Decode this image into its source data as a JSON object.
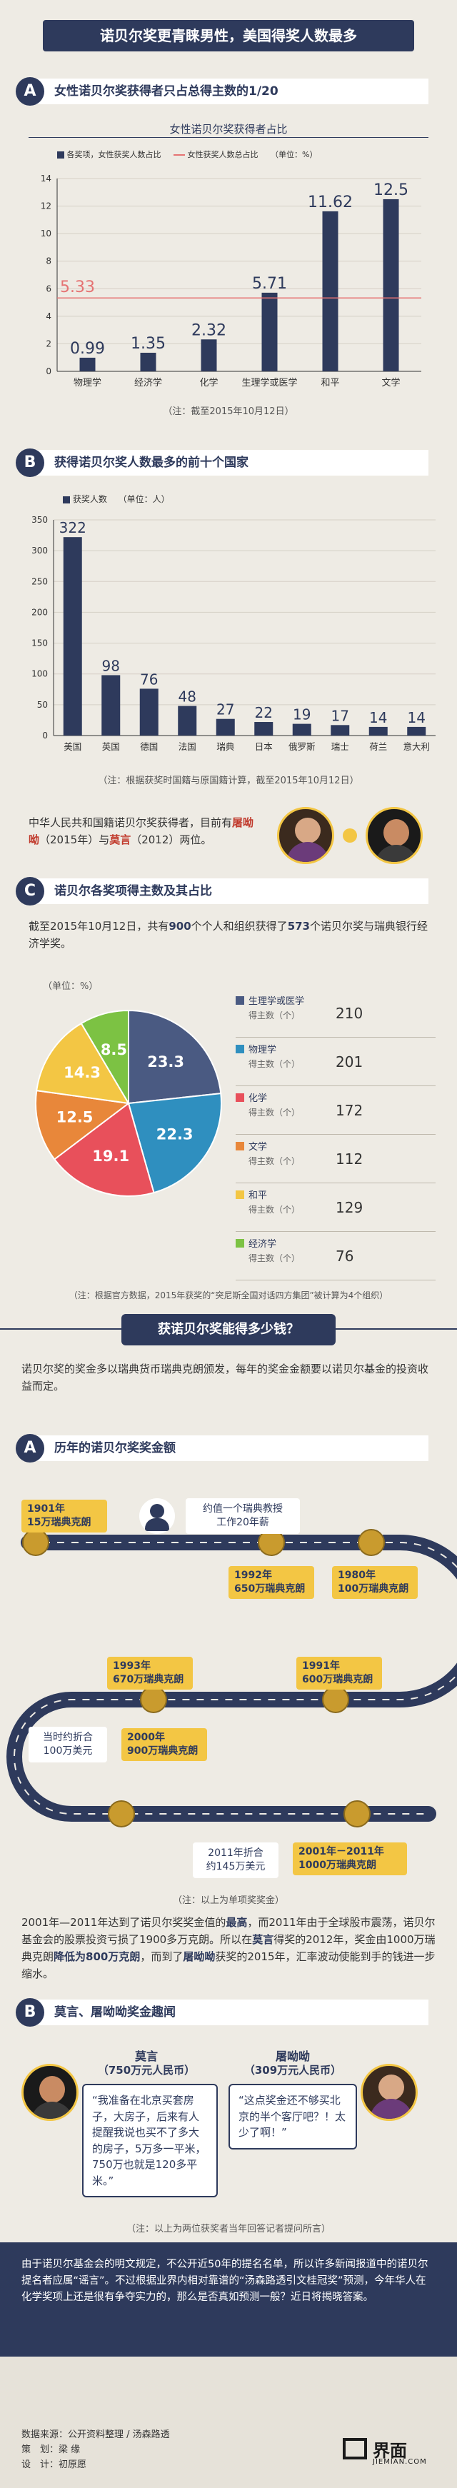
{
  "header": {
    "title": "诺贝尔奖更青睐男性，美国得奖人数最多"
  },
  "sectionA": {
    "badge": "A",
    "title": "女性诺贝尔奖获得者只占总得主数的1/20",
    "chart_data": {
      "type": "bar",
      "title": "女性诺贝尔奖获得者占比",
      "unit": "（单位：%）",
      "legend": [
        "各奖项，女性获奖人数占比",
        "女性获奖人数总占比"
      ],
      "categories": [
        "物理学",
        "经济学",
        "化学",
        "生理学或医学",
        "和平",
        "文学"
      ],
      "values": [
        0.99,
        1.35,
        2.32,
        5.71,
        11.62,
        12.5
      ],
      "overall": 5.33,
      "ylim": [
        0,
        14
      ],
      "yticks": [
        0,
        2,
        4,
        6,
        8,
        10,
        12,
        14
      ],
      "colors": {
        "bar": "#2e3a5c",
        "line": "#e57373"
      }
    },
    "value_labels": [
      "0.99",
      "1.35",
      "2.32",
      "5.71",
      "11.62",
      "12.5"
    ],
    "overall_label": "5.33",
    "note": "（注：截至2015年10月12日）"
  },
  "sectionB": {
    "badge": "B",
    "title": "获得诺贝尔奖人数最多的前十个国家",
    "chart_data": {
      "type": "bar",
      "legend": "获奖人数",
      "unit": "（单位：人）",
      "categories": [
        "美国",
        "英国",
        "德国",
        "法国",
        "瑞典",
        "日本",
        "俄罗斯",
        "瑞士",
        "荷兰",
        "意大利"
      ],
      "values": [
        322,
        98,
        76,
        48,
        27,
        22,
        19,
        17,
        14,
        14
      ],
      "ylim": [
        0,
        350
      ],
      "yticks": [
        0,
        50,
        100,
        150,
        200,
        250,
        300,
        350
      ],
      "colors": {
        "bar": "#2e3a5c"
      }
    },
    "value_labels": [
      "322",
      "98",
      "76",
      "48",
      "27",
      "22",
      "19",
      "17",
      "14",
      "14"
    ],
    "note": "（注：根据获奖时国籍与原国籍计算，截至2015年10月12日）",
    "china_text_1": "中华人民共和国籍诺贝尔奖获得者，目前有",
    "china_name_1": "屠呦呦",
    "china_text_2": "（2015年）与",
    "china_name_2": "莫言",
    "china_text_3": "（2012）两位。"
  },
  "sectionC": {
    "badge": "C",
    "title": "诺贝尔各奖项得主数及其占比",
    "intro_1": "截至2015年10月12日，共有",
    "intro_num_1": "900",
    "intro_2": "个个人和组织获得了",
    "intro_num_2": "573",
    "intro_3": "个诺贝尔奖与瑞典银行经济学奖。",
    "unit": "（单位：%）",
    "chart_data": {
      "type": "pie",
      "slices": [
        {
          "name": "生理学或医学",
          "value": 23.3,
          "count": 210,
          "color": "#4a5a82"
        },
        {
          "name": "物理学",
          "value": 22.3,
          "count": 201,
          "color": "#2f8fbf"
        },
        {
          "name": "化学",
          "value": 19.1,
          "count": 172,
          "color": "#e8505b"
        },
        {
          "name": "文学",
          "value": 12.5,
          "count": 112,
          "color": "#e8873a"
        },
        {
          "name": "和平",
          "value": 14.3,
          "count": 129,
          "color": "#f3c644"
        },
        {
          "name": "经济学",
          "value": 8.5,
          "count": 76,
          "color": "#7cc243"
        }
      ]
    },
    "slice_labels": [
      "23.3",
      "22.3",
      "19.1",
      "12.5",
      "14.3",
      "8.5"
    ],
    "legend_sub": "得主数（个）",
    "legend_counts": [
      "210",
      "201",
      "172",
      "112",
      "129",
      "76"
    ],
    "note": "（注：根据官方数据，2015年获奖的“突尼斯全国对话四方集团”被计算为4个组织）"
  },
  "money": {
    "heading": "获诺贝尔奖能得多少钱？",
    "intro": "诺贝尔奖的奖金多以瑞典货币瑞典克朗颁发，每年的奖金金额要以诺贝尔基金的投资收益而定。",
    "sub_badge": "A",
    "sub_title": "历年的诺贝尔奖奖金额",
    "t1901": "1901年\n15万瑞典克朗",
    "t1901_note": "约值一个瑞典教授\n工作20年薪",
    "t1992": "1992年\n650万瑞典克朗",
    "t1980": "1980年\n100万瑞典克朗",
    "t1993": "1993年\n670万瑞典克朗",
    "t1991": "1991年\n600万瑞典克朗",
    "t2000": "2000年\n900万瑞典克朗",
    "t2000_note": "当时约折合\n100万美元",
    "t2001": "2001年－2011年\n1000万瑞典克朗",
    "t2011_note": "2011年折合\n约145万美元",
    "unit_note": "（注：以上为单项奖奖金）",
    "para_1": "2001年—2011年达到了诺贝尔奖奖金值的",
    "para_hl_1": "最高",
    "para_2": "，而2011年由于全球股市震荡，诺贝尔基金会的股票投资亏损了1900多万克朗。所以在",
    "para_hl_2": "莫言",
    "para_3": "得奖的2012年，奖金由1000万瑞典克朗",
    "para_hl_3": "降低为800万克朗",
    "para_4": "，而到了",
    "para_hl_4": "屠呦呦",
    "para_5": "获奖的2015年，汇率波动使能到手的钱进一步缩水。"
  },
  "quotes": {
    "badge": "B",
    "title": "莫言、屠呦呦奖金趣闻",
    "moyan_name": "莫言",
    "moyan_amount": "（750万元人民币）",
    "moyan_quote": "“我准备在北京买套房子，大房子，后来有人提醒我说也买不了多大的房子，5万多一平米，750万也就是120多平米。”",
    "tu_name": "屠呦呦",
    "tu_amount": "（309万元人民币）",
    "tu_quote": "“这点奖金还不够买北京的半个客厅吧？！太少了啊！”",
    "note": "（注：以上为两位获奖者当年回答记者提问所言）"
  },
  "closing": "由于诺贝尔基金会的明文规定，不公开近50年的提名名单，所以许多新闻报道中的诺贝尔提名者应属“谣言”。不过根据业界内相对靠谱的“汤森路透引文桂冠奖”预测，今年华人在化学奖项上还是很有争夺实力的，那么是否真如预测一般？近日将揭晓答案。",
  "footer": {
    "source": "数据来源：公开资料整理 / 汤森路透",
    "planner": "策　划：梁 缘",
    "designer": "设　计：初原愿",
    "brand": "界面",
    "brand_url": "JIEMIAN.COM"
  }
}
